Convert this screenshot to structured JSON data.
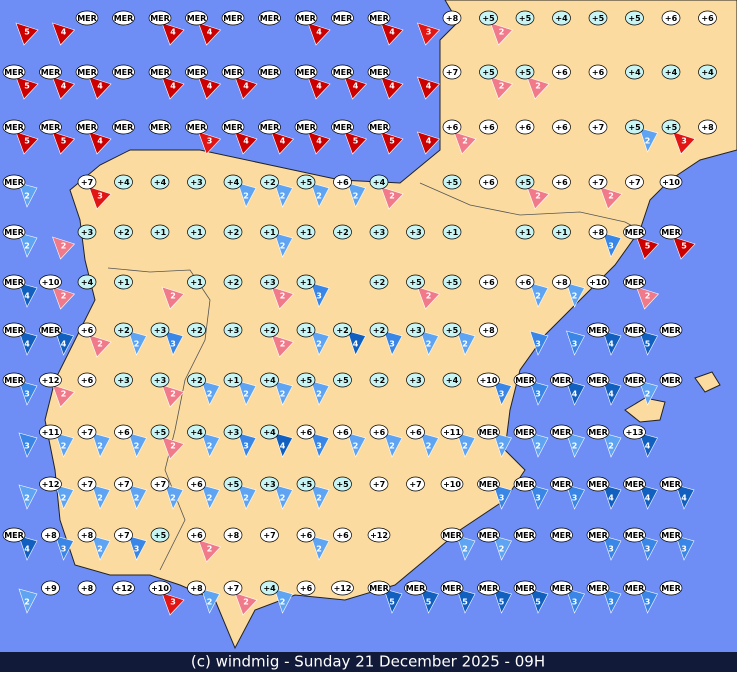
{
  "map": {
    "footer": "(c) windmig - Sunday 21 December 2025 - 09H",
    "palette": {
      "w": [
        "#f07a8a",
        "#e21515",
        "#cc0000"
      ],
      "c": [
        "#5fa4f2",
        "#3a86e6",
        "#1160c0"
      ]
    },
    "rows": [
      {
        "labels": [
          null,
          null,
          "MER",
          "MER",
          "MER",
          "MER",
          "MER",
          "MER",
          "MER",
          "MER",
          "MER",
          null,
          "+8",
          "+5",
          "+5",
          "+4",
          "+5",
          "+5",
          "+6",
          "+6"
        ],
        "winds": [
          [
            5,
            "w"
          ],
          [
            4,
            "w"
          ],
          null,
          null,
          [
            4,
            "w"
          ],
          [
            4,
            "w"
          ],
          null,
          null,
          [
            4,
            "w"
          ],
          null,
          [
            4,
            "w"
          ],
          [
            3,
            "w"
          ],
          null,
          [
            2,
            "w"
          ],
          null,
          null,
          null,
          null,
          null,
          null
        ]
      },
      {
        "labels": [
          "MER",
          "MER",
          "MER",
          "MER",
          "MER",
          "MER",
          "MER",
          "MER",
          "MER",
          "MER",
          "MER",
          null,
          "+7",
          "+5",
          "+5",
          "+6",
          "+6",
          "+4",
          "+4",
          "+4"
        ],
        "winds": [
          [
            5,
            "w"
          ],
          [
            4,
            "w"
          ],
          [
            4,
            "w"
          ],
          null,
          [
            4,
            "w"
          ],
          [
            4,
            "w"
          ],
          [
            4,
            "w"
          ],
          null,
          [
            4,
            "w"
          ],
          [
            4,
            "w"
          ],
          [
            4,
            "w"
          ],
          [
            4,
            "w"
          ],
          null,
          [
            2,
            "w"
          ],
          [
            2,
            "w"
          ],
          null,
          null,
          null,
          null,
          null
        ]
      },
      {
        "labels": [
          "MER",
          "MER",
          "MER",
          "MER",
          "MER",
          "MER",
          "MER",
          "MER",
          "MER",
          "MER",
          "MER",
          null,
          "+6",
          "+6",
          "+6",
          "+6",
          "+7",
          "+5",
          "+5",
          "+8"
        ],
        "winds": [
          [
            5,
            "w"
          ],
          [
            5,
            "w"
          ],
          [
            4,
            "w"
          ],
          null,
          null,
          [
            3,
            "w"
          ],
          [
            4,
            "w"
          ],
          [
            4,
            "w"
          ],
          [
            4,
            "w"
          ],
          [
            5,
            "w"
          ],
          [
            5,
            "w"
          ],
          [
            4,
            "w"
          ],
          [
            2,
            "w"
          ],
          null,
          null,
          null,
          null,
          [
            2,
            "c"
          ],
          [
            3,
            "w"
          ],
          null
        ]
      },
      {
        "labels": [
          "MER",
          null,
          "+7",
          "+4",
          "+4",
          "+3",
          "+4",
          "+2",
          "+5",
          "+6",
          "+4",
          null,
          "+5",
          "+6",
          "+5",
          "+6",
          "+7",
          "+7",
          "+10",
          null
        ],
        "winds": [
          [
            2,
            "c"
          ],
          null,
          [
            3,
            "w"
          ],
          null,
          null,
          null,
          [
            2,
            "c"
          ],
          [
            2,
            "c"
          ],
          [
            2,
            "c"
          ],
          [
            2,
            "c"
          ],
          [
            2,
            "w"
          ],
          null,
          null,
          null,
          [
            2,
            "w"
          ],
          null,
          [
            2,
            "w"
          ],
          null,
          null,
          null
        ]
      },
      {
        "labels": [
          "MER",
          null,
          "+3",
          "+2",
          "+1",
          "+1",
          "+2",
          "+1",
          "+1",
          "+2",
          "+3",
          "+3",
          "+1",
          null,
          "+1",
          "+1",
          "+8",
          "MER",
          "MER",
          null
        ],
        "winds": [
          [
            2,
            "c"
          ],
          [
            2,
            "w"
          ],
          null,
          null,
          null,
          null,
          null,
          [
            2,
            "c"
          ],
          null,
          null,
          null,
          null,
          null,
          null,
          null,
          null,
          [
            3,
            "c"
          ],
          [
            5,
            "w"
          ],
          [
            5,
            "w"
          ],
          null
        ]
      },
      {
        "labels": [
          "MER",
          "+10",
          "+4",
          "+1",
          null,
          "+1",
          "+2",
          "+3",
          "+1",
          null,
          "+2",
          "+5",
          "+5",
          "+6",
          "+6",
          "+8",
          "+10",
          "MER",
          null,
          null
        ],
        "winds": [
          [
            4,
            "c"
          ],
          [
            2,
            "w"
          ],
          null,
          null,
          [
            2,
            "w"
          ],
          null,
          null,
          [
            2,
            "w"
          ],
          [
            3,
            "c"
          ],
          null,
          null,
          [
            2,
            "w"
          ],
          null,
          null,
          [
            2,
            "c"
          ],
          [
            2,
            "c"
          ],
          null,
          [
            2,
            "w"
          ],
          null,
          null
        ]
      },
      {
        "labels": [
          "MER",
          "MER",
          "+6",
          "+2",
          "+3",
          "+2",
          "+3",
          "+2",
          "+1",
          "+2",
          "+2",
          "+3",
          "+5",
          "+8",
          null,
          null,
          "MER",
          "MER",
          "MER",
          null
        ],
        "winds": [
          [
            4,
            "c"
          ],
          [
            4,
            "c"
          ],
          [
            2,
            "w"
          ],
          [
            2,
            "c"
          ],
          [
            3,
            "c"
          ],
          null,
          null,
          [
            2,
            "w"
          ],
          [
            2,
            "c"
          ],
          [
            4,
            "c"
          ],
          [
            3,
            "c"
          ],
          [
            2,
            "c"
          ],
          [
            2,
            "c"
          ],
          null,
          [
            3,
            "c"
          ],
          [
            3,
            "c"
          ],
          [
            4,
            "c"
          ],
          [
            5,
            "c"
          ],
          null,
          null
        ]
      },
      {
        "labels": [
          "MER",
          "+12",
          "+6",
          "+3",
          "+3",
          "+2",
          "+1",
          "+4",
          "+5",
          "+5",
          "+2",
          "+3",
          "+4",
          "+10",
          "MER",
          "MER",
          "MER",
          "MER",
          "MER",
          null
        ],
        "winds": [
          [
            3,
            "c"
          ],
          [
            2,
            "w"
          ],
          null,
          null,
          [
            2,
            "w"
          ],
          [
            2,
            "c"
          ],
          [
            2,
            "c"
          ],
          [
            2,
            "c"
          ],
          [
            2,
            "c"
          ],
          null,
          null,
          null,
          null,
          [
            3,
            "c"
          ],
          [
            3,
            "c"
          ],
          [
            4,
            "c"
          ],
          [
            4,
            "c"
          ],
          [
            2,
            "c"
          ],
          null,
          null
        ]
      },
      {
        "labels": [
          null,
          "+11",
          "+7",
          "+6",
          "+5",
          "+4",
          "+3",
          "+4",
          "+6",
          "+6",
          "+6",
          "+6",
          "+11",
          "MER",
          "MER",
          "MER",
          "MER",
          "+13",
          null,
          null
        ],
        "winds": [
          [
            3,
            "c"
          ],
          [
            2,
            "c"
          ],
          [
            2,
            "c"
          ],
          [
            2,
            "c"
          ],
          [
            2,
            "w"
          ],
          [
            2,
            "c"
          ],
          [
            3,
            "c"
          ],
          [
            4,
            "c"
          ],
          [
            3,
            "c"
          ],
          [
            2,
            "c"
          ],
          [
            2,
            "c"
          ],
          [
            2,
            "c"
          ],
          [
            2,
            "c"
          ],
          [
            2,
            "c"
          ],
          [
            2,
            "c"
          ],
          [
            2,
            "c"
          ],
          [
            2,
            "c"
          ],
          [
            4,
            "c"
          ],
          null,
          null
        ]
      },
      {
        "labels": [
          null,
          "+12",
          "+7",
          "+7",
          "+7",
          "+6",
          "+5",
          "+3",
          "+5",
          "+5",
          "+7",
          "+7",
          "+10",
          "MER",
          "MER",
          "MER",
          "MER",
          "MER",
          "MER",
          null
        ],
        "winds": [
          [
            2,
            "c"
          ],
          [
            2,
            "c"
          ],
          [
            2,
            "c"
          ],
          [
            2,
            "c"
          ],
          [
            2,
            "c"
          ],
          [
            2,
            "c"
          ],
          [
            2,
            "c"
          ],
          [
            2,
            "c"
          ],
          [
            2,
            "c"
          ],
          null,
          null,
          null,
          null,
          [
            3,
            "c"
          ],
          [
            3,
            "c"
          ],
          [
            3,
            "c"
          ],
          [
            4,
            "c"
          ],
          [
            4,
            "c"
          ],
          [
            4,
            "c"
          ],
          null
        ]
      },
      {
        "labels": [
          "MER",
          "+8",
          "+8",
          "+7",
          "+5",
          "+6",
          "+8",
          "+7",
          "+6",
          "+6",
          "+12",
          null,
          "MER",
          "MER",
          "MER",
          "MER",
          "MER",
          "MER",
          "MER",
          null
        ],
        "winds": [
          [
            4,
            "c"
          ],
          [
            3,
            "c"
          ],
          [
            2,
            "c"
          ],
          [
            3,
            "c"
          ],
          null,
          [
            2,
            "w"
          ],
          null,
          null,
          [
            2,
            "c"
          ],
          null,
          null,
          null,
          [
            2,
            "c"
          ],
          [
            2,
            "c"
          ],
          null,
          null,
          [
            3,
            "c"
          ],
          [
            3,
            "c"
          ],
          [
            3,
            "c"
          ],
          null
        ]
      },
      {
        "labels": [
          null,
          "+9",
          "+8",
          "+12",
          "+10",
          "+8",
          "+7",
          "+4",
          "+6",
          "+12",
          "MER",
          "MER",
          "MER",
          "MER",
          "MER",
          "MER",
          "MER",
          "MER",
          "MER",
          null
        ],
        "winds": [
          [
            2,
            "c"
          ],
          null,
          null,
          null,
          [
            3,
            "w"
          ],
          [
            2,
            "c"
          ],
          [
            2,
            "w"
          ],
          [
            2,
            "c"
          ],
          null,
          null,
          [
            5,
            "c"
          ],
          [
            5,
            "c"
          ],
          [
            5,
            "c"
          ],
          [
            5,
            "c"
          ],
          [
            5,
            "c"
          ],
          [
            3,
            "c"
          ],
          [
            3,
            "c"
          ],
          [
            3,
            "c"
          ],
          null,
          null
        ]
      }
    ]
  }
}
